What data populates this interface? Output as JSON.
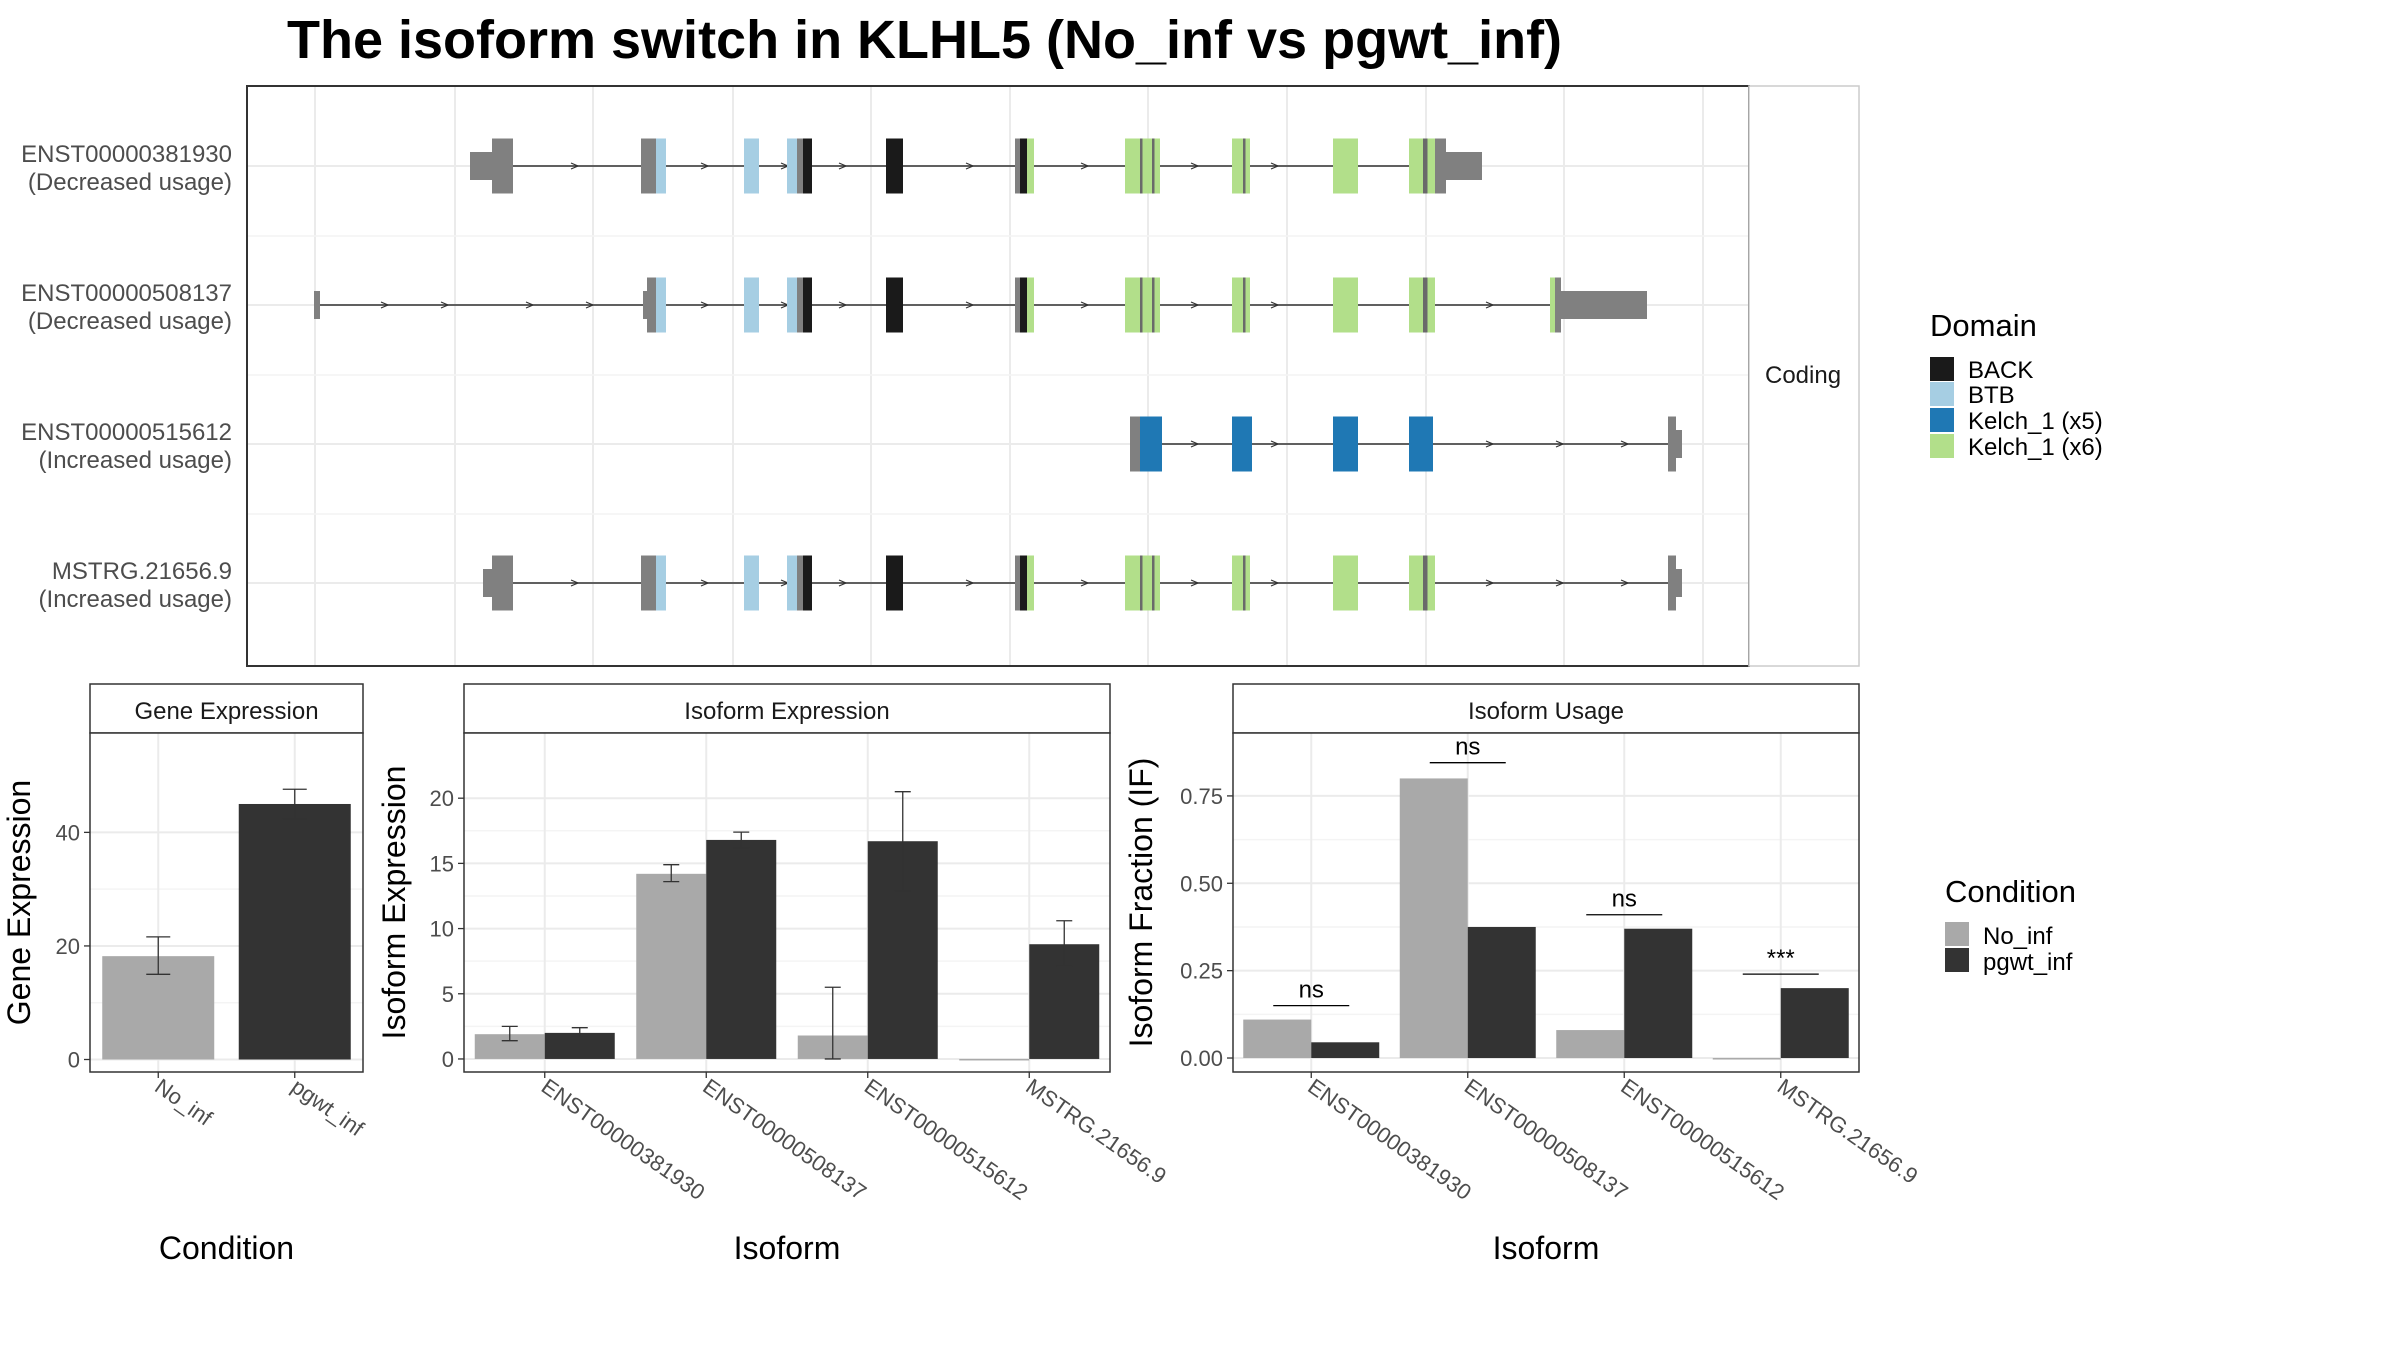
{
  "title": "The isoform switch in KLHL5 (No_inf vs pgwt_inf)",
  "colors": {
    "utr_grey": "#808080",
    "BACK": "#1a1a1a",
    "BTB": "#a6cee3",
    "Kelch_1_x5": "#1f78b4",
    "Kelch_1_x6": "#b2df8a",
    "No_inf": "#a9a9a9",
    "pgwt_inf": "#333333",
    "panel_border": "#333333",
    "grid": "#ebebeb",
    "strip_bg": "#ffffff"
  },
  "structure_panel": {
    "strip_label": "Coding",
    "isoforms": [
      {
        "id": "ENST00000381930",
        "usage": "(Decreased usage)"
      },
      {
        "id": "ENST00000508137",
        "usage": "(Decreased usage)"
      },
      {
        "id": "ENST00000515612",
        "usage": "(Increased usage)"
      },
      {
        "id": "MSTRG.21656.9",
        "usage": "(Increased usage)"
      }
    ],
    "domain_legend": {
      "title": "Domain",
      "items": [
        {
          "label": "BACK",
          "color": "#1a1a1a"
        },
        {
          "label": "BTB",
          "color": "#a6cee3"
        },
        {
          "label": "Kelch_1 (x5)",
          "color": "#1f78b4"
        },
        {
          "label": "Kelch_1 (x6)",
          "color": "#b2df8a"
        }
      ]
    }
  },
  "condition_legend": {
    "title": "Condition",
    "items": [
      {
        "label": "No_inf",
        "color": "#a9a9a9"
      },
      {
        "label": "pgwt_inf",
        "color": "#333333"
      }
    ]
  },
  "chart_data": [
    {
      "type": "bar",
      "strip": "Gene Expression",
      "xlabel": "Condition",
      "ylabel": "Gene Expression",
      "categories": [
        "No_inf",
        "pgwt_inf"
      ],
      "values": [
        18.2,
        45.0
      ],
      "errors": [
        [
          15.0,
          21.6
        ],
        [
          42.4,
          47.6
        ]
      ],
      "ylim": [
        -2.2,
        57.5
      ],
      "yticks": [
        0,
        20,
        40
      ]
    },
    {
      "type": "bar",
      "strip": "Isoform Expression",
      "xlabel": "Isoform",
      "ylabel": "Isoform Expression",
      "categories": [
        "ENST00000381930",
        "ENST00000508137",
        "ENST00000515612",
        "MSTRG.21656.9"
      ],
      "ylim": [
        -1.0,
        25.0
      ],
      "yticks": [
        0,
        5,
        10,
        15,
        20
      ],
      "series": [
        {
          "name": "No_inf",
          "values": [
            1.9,
            14.2,
            1.8,
            0.0
          ],
          "errors": [
            [
              1.4,
              2.5
            ],
            [
              13.6,
              14.9
            ],
            [
              0.0,
              5.5
            ],
            null
          ]
        },
        {
          "name": "pgwt_inf",
          "values": [
            2.0,
            16.8,
            16.7,
            8.8
          ],
          "errors": [
            [
              1.7,
              2.4
            ],
            [
              16.2,
              17.4
            ],
            [
              12.9,
              20.5
            ],
            [
              7.1,
              10.6
            ]
          ]
        }
      ]
    },
    {
      "type": "bar",
      "strip": "Isoform Usage",
      "xlabel": "Isoform",
      "ylabel": "Isoform Fraction (IF)",
      "categories": [
        "ENST00000381930",
        "ENST00000508137",
        "ENST00000515612",
        "MSTRG.21656.9"
      ],
      "ylim": [
        -0.04,
        0.93
      ],
      "yticks": [
        0.0,
        0.25,
        0.5,
        0.75
      ],
      "ytick_labels": [
        "0.00",
        "0.25",
        "0.50",
        "0.75"
      ],
      "series": [
        {
          "name": "No_inf",
          "values": [
            0.11,
            0.8,
            0.08,
            0.0
          ]
        },
        {
          "name": "pgwt_inf",
          "values": [
            0.045,
            0.375,
            0.37,
            0.2
          ]
        }
      ],
      "significance": [
        "ns",
        "ns",
        "ns",
        "***"
      ],
      "sig_heights": [
        0.15,
        0.845,
        0.41,
        0.24
      ]
    }
  ]
}
